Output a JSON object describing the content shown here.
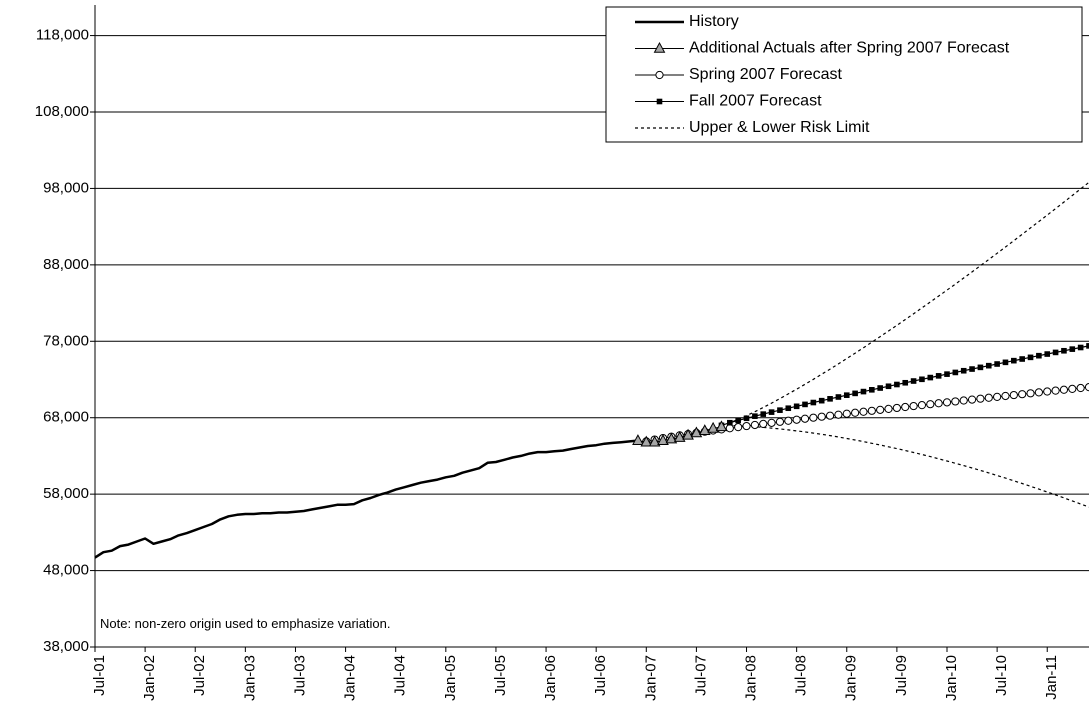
{
  "chart_data": {
    "type": "line",
    "title": "",
    "xlabel": "",
    "ylabel": "",
    "ylim": [
      38000,
      122000
    ],
    "yticks": [
      38000,
      48000,
      58000,
      68000,
      78000,
      88000,
      98000,
      108000,
      118000
    ],
    "ytick_labels": [
      "38,000",
      "48,000",
      "58,000",
      "68,000",
      "78,000",
      "88,000",
      "98,000",
      "108,000",
      "118,000"
    ],
    "x_range": [
      "2001-07",
      "2011-06"
    ],
    "xtick_labels": [
      "Jul-01",
      "Jan-02",
      "Jul-02",
      "Jan-03",
      "Jul-03",
      "Jan-04",
      "Jul-04",
      "Jan-05",
      "Jul-05",
      "Jan-06",
      "Jul-06",
      "Jan-07",
      "Jul-07",
      "Jan-08",
      "Jul-08",
      "Jan-09",
      "Jul-09",
      "Jan-10",
      "Jul-10",
      "Jan-11"
    ],
    "grid": "horizontal",
    "legend_position": "top-right",
    "note": "Note: non-zero origin used to emphasize variation.",
    "series": [
      {
        "name": "History",
        "style": "solid-thick",
        "color": "#000000",
        "points": [
          [
            "2001-07",
            49700
          ],
          [
            "2001-08",
            50400
          ],
          [
            "2001-09",
            50600
          ],
          [
            "2001-10",
            51200
          ],
          [
            "2001-11",
            51400
          ],
          [
            "2001-12",
            51800
          ],
          [
            "2002-01",
            52200
          ],
          [
            "2002-02",
            51500
          ],
          [
            "2002-03",
            51800
          ],
          [
            "2002-04",
            52100
          ],
          [
            "2002-05",
            52600
          ],
          [
            "2002-06",
            52900
          ],
          [
            "2002-07",
            53300
          ],
          [
            "2002-08",
            53700
          ],
          [
            "2002-09",
            54100
          ],
          [
            "2002-10",
            54700
          ],
          [
            "2002-11",
            55100
          ],
          [
            "2002-12",
            55300
          ],
          [
            "2003-01",
            55400
          ],
          [
            "2003-02",
            55400
          ],
          [
            "2003-03",
            55500
          ],
          [
            "2003-04",
            55500
          ],
          [
            "2003-05",
            55600
          ],
          [
            "2003-06",
            55600
          ],
          [
            "2003-07",
            55700
          ],
          [
            "2003-08",
            55800
          ],
          [
            "2003-09",
            56000
          ],
          [
            "2003-10",
            56200
          ],
          [
            "2003-11",
            56400
          ],
          [
            "2003-12",
            56600
          ],
          [
            "2004-01",
            56600
          ],
          [
            "2004-02",
            56700
          ],
          [
            "2004-03",
            57200
          ],
          [
            "2004-04",
            57500
          ],
          [
            "2004-05",
            57900
          ],
          [
            "2004-06",
            58200
          ],
          [
            "2004-07",
            58600
          ],
          [
            "2004-08",
            58900
          ],
          [
            "2004-09",
            59200
          ],
          [
            "2004-10",
            59500
          ],
          [
            "2004-11",
            59700
          ],
          [
            "2004-12",
            59900
          ],
          [
            "2005-01",
            60200
          ],
          [
            "2005-02",
            60400
          ],
          [
            "2005-03",
            60800
          ],
          [
            "2005-04",
            61100
          ],
          [
            "2005-05",
            61400
          ],
          [
            "2005-06",
            62100
          ],
          [
            "2005-07",
            62200
          ],
          [
            "2005-08",
            62500
          ],
          [
            "2005-09",
            62800
          ],
          [
            "2005-10",
            63000
          ],
          [
            "2005-11",
            63300
          ],
          [
            "2005-12",
            63500
          ],
          [
            "2006-01",
            63500
          ],
          [
            "2006-02",
            63600
          ],
          [
            "2006-03",
            63700
          ],
          [
            "2006-04",
            63900
          ],
          [
            "2006-05",
            64100
          ],
          [
            "2006-06",
            64300
          ],
          [
            "2006-07",
            64400
          ],
          [
            "2006-08",
            64600
          ],
          [
            "2006-09",
            64700
          ],
          [
            "2006-10",
            64800
          ],
          [
            "2006-11",
            64900
          ],
          [
            "2006-12",
            65000
          ]
        ]
      },
      {
        "name": "Additional Actuals after Spring 2007 Forecast",
        "style": "solid-triangle",
        "color": "#000000",
        "marker_fill": "#a6a6a6",
        "points": [
          [
            "2006-12",
            65000
          ],
          [
            "2007-01",
            64800
          ],
          [
            "2007-02",
            64800
          ],
          [
            "2007-03",
            65000
          ],
          [
            "2007-04",
            65200
          ],
          [
            "2007-05",
            65400
          ],
          [
            "2007-06",
            65700
          ],
          [
            "2007-07",
            66000
          ],
          [
            "2007-08",
            66300
          ],
          [
            "2007-09",
            66600
          ],
          [
            "2007-10",
            66800
          ]
        ]
      },
      {
        "name": "Spring 2007 Forecast",
        "style": "solid-circle",
        "color": "#000000",
        "start": [
          "2007-01",
          64900
        ],
        "end": [
          "2011-06",
          72000
        ],
        "curve_power": 0.85
      },
      {
        "name": "Fall 2007 Forecast",
        "style": "solid-square",
        "color": "#000000",
        "start": [
          "2007-10",
          67000
        ],
        "end": [
          "2011-06",
          77400
        ],
        "curve_power": 0.9
      },
      {
        "name": "Upper & Lower Risk Limit",
        "style": "dotted",
        "color": "#000000",
        "upper": {
          "start": [
            "2007-10",
            67000
          ],
          "end": [
            "2011-06",
            98800
          ],
          "curve_power": 1.2
        },
        "lower": {
          "start": [
            "2007-10",
            67000
          ],
          "end": [
            "2011-06",
            56300
          ],
          "curve_power": 1.7
        }
      }
    ]
  }
}
